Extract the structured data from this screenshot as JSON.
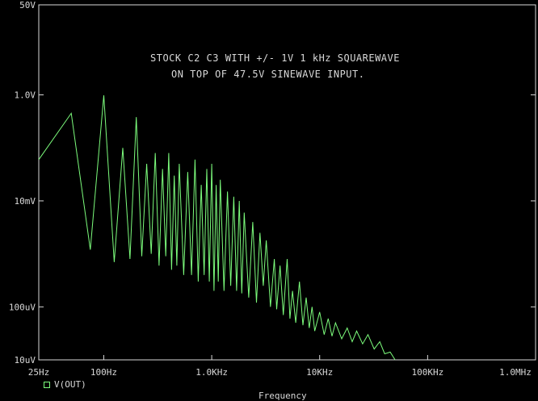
{
  "chart_data": {
    "type": "line",
    "annotation": [
      "STOCK C2 C3 WITH +/- 1V 1 kHz SQUAREWAVE",
      "ON TOP OF 47.5V SINEWAVE INPUT."
    ],
    "xlabel": "Frequency",
    "xscale": "log",
    "yscale": "log",
    "xlim": [
      25,
      1000000
    ],
    "ylim": [
      1e-05,
      50
    ],
    "x_ticks": [
      {
        "value": 25,
        "label": "25Hz"
      },
      {
        "value": 100,
        "label": "100Hz"
      },
      {
        "value": 1000,
        "label": "1.0KHz"
      },
      {
        "value": 10000,
        "label": "10KHz"
      },
      {
        "value": 100000,
        "label": "100KHz"
      },
      {
        "value": 1000000,
        "label": "1.0MHz"
      }
    ],
    "y_ticks": [
      {
        "value": 50,
        "label": "50V"
      },
      {
        "value": 1,
        "label": "1.0V"
      },
      {
        "value": 0.01,
        "label": "10mV"
      },
      {
        "value": 0.0001,
        "label": "100uV"
      },
      {
        "value": 1e-05,
        "label": "10uV"
      }
    ],
    "grid": false,
    "series": [
      {
        "name": "V(OUT)",
        "color": "#7CFC7C",
        "points": [
          [
            25,
            0.06
          ],
          [
            50,
            0.45
          ],
          [
            75,
            0.0012
          ],
          [
            100,
            0.98
          ],
          [
            125,
            0.0007
          ],
          [
            150,
            0.1
          ],
          [
            175,
            0.0008
          ],
          [
            200,
            0.38
          ],
          [
            225,
            0.0009
          ],
          [
            250,
            0.05
          ],
          [
            275,
            0.001
          ],
          [
            300,
            0.08
          ],
          [
            325,
            0.0006
          ],
          [
            350,
            0.04
          ],
          [
            375,
            0.0009
          ],
          [
            400,
            0.08
          ],
          [
            425,
            0.0005
          ],
          [
            450,
            0.03
          ],
          [
            475,
            0.0006
          ],
          [
            500,
            0.05
          ],
          [
            550,
            0.0004
          ],
          [
            600,
            0.035
          ],
          [
            650,
            0.0004
          ],
          [
            700,
            0.06
          ],
          [
            750,
            0.0003
          ],
          [
            800,
            0.02
          ],
          [
            850,
            0.0004
          ],
          [
            900,
            0.04
          ],
          [
            950,
            0.0003
          ],
          [
            1000,
            0.05
          ],
          [
            1050,
            0.0002
          ],
          [
            1100,
            0.02
          ],
          [
            1150,
            0.0003
          ],
          [
            1200,
            0.025
          ],
          [
            1300,
            0.0002
          ],
          [
            1400,
            0.015
          ],
          [
            1500,
            0.00025
          ],
          [
            1600,
            0.012
          ],
          [
            1700,
            0.0002
          ],
          [
            1800,
            0.01
          ],
          [
            1900,
            0.00018
          ],
          [
            2000,
            0.006
          ],
          [
            2200,
            0.00015
          ],
          [
            2400,
            0.004
          ],
          [
            2600,
            0.00012
          ],
          [
            2800,
            0.0025
          ],
          [
            3000,
            0.00025
          ],
          [
            3200,
            0.0018
          ],
          [
            3500,
            0.0001
          ],
          [
            3800,
            0.0008
          ],
          [
            4000,
            9e-05
          ],
          [
            4300,
            0.0006
          ],
          [
            4600,
            7e-05
          ],
          [
            5000,
            0.0008
          ],
          [
            5300,
            6e-05
          ],
          [
            5600,
            0.0002
          ],
          [
            6000,
            5e-05
          ],
          [
            6500,
            0.0003
          ],
          [
            7000,
            4.5e-05
          ],
          [
            7500,
            0.00015
          ],
          [
            8000,
            4e-05
          ],
          [
            8500,
            0.0001
          ],
          [
            9000,
            3.5e-05
          ],
          [
            10000,
            8e-05
          ],
          [
            11000,
            3e-05
          ],
          [
            12000,
            6e-05
          ],
          [
            13000,
            2.8e-05
          ],
          [
            14000,
            5e-05
          ],
          [
            16000,
            2.5e-05
          ],
          [
            18000,
            4e-05
          ],
          [
            20000,
            2.2e-05
          ],
          [
            22000,
            3.5e-05
          ],
          [
            25000,
            2e-05
          ],
          [
            28000,
            3e-05
          ],
          [
            32000,
            1.6e-05
          ],
          [
            36000,
            2.2e-05
          ],
          [
            40000,
            1.3e-05
          ],
          [
            45000,
            1.4e-05
          ],
          [
            50000,
            1e-05
          ]
        ]
      }
    ]
  }
}
